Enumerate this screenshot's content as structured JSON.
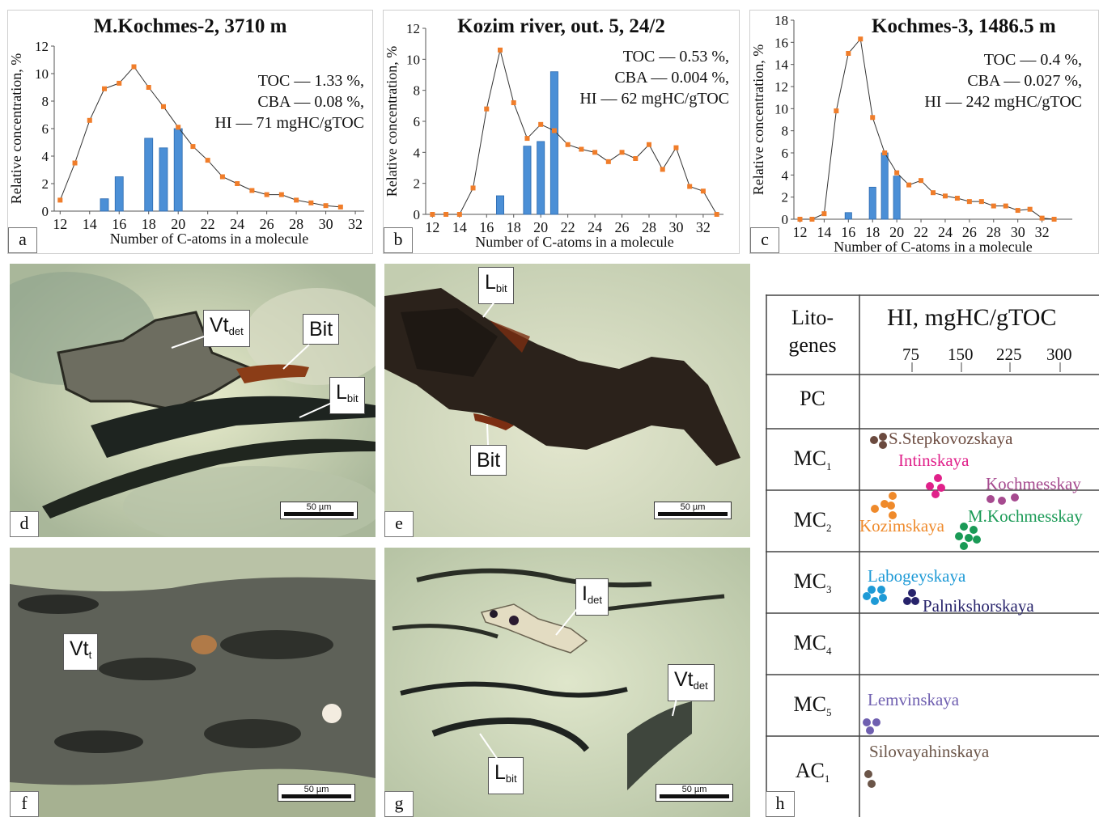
{
  "colors": {
    "line_marker": "#f07d2a",
    "bar": "#4b8fd6",
    "bar_edge": "#2d6bb0",
    "line": "#333333"
  },
  "charts": [
    {
      "letter": "a",
      "title": "M.Kochmes-2, 3710 m",
      "stats": [
        "TOC — 1.33 %,",
        "CBA — 0.08 %,",
        "HI — 71 mgHC/gTOC"
      ],
      "xlabel": "Number of C-atoms in a molecule",
      "ylabel": "Relative concentration, %"
    },
    {
      "letter": "b",
      "title": "Kozim river, out. 5, 24/2",
      "stats": [
        "TOC — 0.53 %,",
        "CBA — 0.004 %,",
        "HI — 62 mgHC/gTOC"
      ],
      "xlabel": "Number of C-atoms in a molecule",
      "ylabel": "Relative concentration, %"
    },
    {
      "letter": "c",
      "title": "Kochmes-3, 1486.5 m",
      "stats": [
        "TOC — 0.4 %,",
        "CBA — 0.027 %,",
        "HI — 242 mgHC/gTOC"
      ],
      "xlabel": "Number of C-atoms in a molecule",
      "ylabel": "Relative concentration, %"
    }
  ],
  "chart_data": [
    {
      "type": "bar",
      "title": "M.Kochmes-2, 3710 m",
      "xlabel": "Number of C-atoms in a molecule",
      "ylabel": "Relative concentration, %",
      "xlim": [
        11.6,
        32.6
      ],
      "ylim": [
        0,
        12
      ],
      "xticks": [
        12,
        14,
        16,
        18,
        20,
        22,
        24,
        26,
        28,
        30,
        32
      ],
      "yticks": [
        0,
        2,
        4,
        6,
        8,
        10,
        12
      ],
      "line": {
        "x": [
          12,
          13,
          14,
          15,
          16,
          17,
          18,
          19,
          20,
          21,
          22,
          23,
          24,
          25,
          26,
          27,
          28,
          29,
          30,
          31
        ],
        "y": [
          0.8,
          3.5,
          6.6,
          8.9,
          9.3,
          10.5,
          9.0,
          7.6,
          6.1,
          4.7,
          3.7,
          2.5,
          2.0,
          1.5,
          1.2,
          1.2,
          0.8,
          0.6,
          0.4,
          0.3
        ]
      },
      "bars": {
        "x": [
          15,
          16,
          18,
          19,
          20
        ],
        "y": [
          0.9,
          2.5,
          5.3,
          4.6,
          6.0
        ]
      }
    },
    {
      "type": "bar",
      "title": "Kozim river, out. 5, 24/2",
      "xlabel": "Number of C-atoms in a molecule",
      "ylabel": "Relative concentration, %",
      "xlim": [
        11.5,
        33.5
      ],
      "ylim": [
        0,
        12
      ],
      "xticks": [
        12,
        14,
        16,
        18,
        20,
        22,
        24,
        26,
        28,
        30,
        32
      ],
      "yticks": [
        0,
        2,
        4,
        6,
        8,
        10,
        12
      ],
      "line": {
        "x": [
          12,
          13,
          14,
          15,
          16,
          17,
          18,
          19,
          20,
          21,
          22,
          23,
          24,
          25,
          26,
          27,
          28,
          29,
          30,
          31,
          32,
          33
        ],
        "y": [
          0.0,
          0.0,
          0.0,
          1.7,
          6.8,
          10.6,
          7.2,
          4.9,
          5.8,
          5.4,
          4.5,
          4.2,
          4.0,
          3.4,
          4.0,
          3.6,
          4.5,
          2.9,
          4.3,
          1.8,
          1.5,
          0.0
        ]
      },
      "bars": {
        "x": [
          17,
          19,
          20,
          21
        ],
        "y": [
          1.2,
          4.4,
          4.7,
          9.2
        ]
      }
    },
    {
      "type": "bar",
      "title": "Kochmes-3, 1486.5 m",
      "xlabel": "Number of C-atoms in a molecule",
      "ylabel": "Relative concentration, %",
      "xlim": [
        11.5,
        34.5
      ],
      "ylim": [
        0,
        18
      ],
      "xticks": [
        12,
        14,
        16,
        18,
        20,
        22,
        24,
        26,
        28,
        30,
        32
      ],
      "yticks": [
        0,
        2,
        4,
        6,
        8,
        10,
        12,
        14,
        16,
        18
      ],
      "line": {
        "x": [
          12,
          13,
          14,
          15,
          16,
          17,
          18,
          19,
          20,
          21,
          22,
          23,
          24,
          25,
          26,
          27,
          28,
          29,
          30,
          31,
          32,
          33
        ],
        "y": [
          0.0,
          0.0,
          0.5,
          9.8,
          15.0,
          16.3,
          9.2,
          6.0,
          4.2,
          3.1,
          3.5,
          2.4,
          2.1,
          1.9,
          1.6,
          1.6,
          1.2,
          1.2,
          0.8,
          0.9,
          0.1,
          0.0
        ]
      },
      "bars": {
        "x": [
          16,
          18,
          19,
          20
        ],
        "y": [
          0.6,
          2.9,
          6.0,
          3.9
        ]
      }
    }
  ],
  "photos": {
    "d": {
      "letter": "d",
      "scale": "50 µm",
      "labels": [
        {
          "main": "Vt",
          "sub": "det"
        },
        {
          "main": "Bit",
          "sub": ""
        },
        {
          "main": "L",
          "sub": "bit"
        }
      ]
    },
    "e": {
      "letter": "e",
      "scale": "50 µm",
      "labels": [
        {
          "main": "L",
          "sub": "bit"
        },
        {
          "main": "Bit",
          "sub": ""
        }
      ]
    },
    "f": {
      "letter": "f",
      "scale": "50 µm",
      "labels": [
        {
          "main": "Vt",
          "sub": "t"
        }
      ]
    },
    "g": {
      "letter": "g",
      "scale": "50 µm",
      "labels": [
        {
          "main": "I",
          "sub": "det"
        },
        {
          "main": "Vt",
          "sub": "det"
        },
        {
          "main": "L",
          "sub": "bit"
        }
      ]
    }
  },
  "table": {
    "letter": "h",
    "col1_header": [
      "Lito-",
      "genes"
    ],
    "col2_header": "HI, mgHC/gTOC",
    "ticks": [
      "75",
      "150",
      "225",
      "300"
    ],
    "rows": [
      {
        "main": "PC",
        "sub": ""
      },
      {
        "main": "MC",
        "sub": "1"
      },
      {
        "main": "MC",
        "sub": "2"
      },
      {
        "main": "MC",
        "sub": "3"
      },
      {
        "main": "MC",
        "sub": "4"
      },
      {
        "main": "MC",
        "sub": "5"
      },
      {
        "main": "AC",
        "sub": "1"
      }
    ],
    "formations": [
      {
        "name": "S.Stepkovozskaya",
        "color": "#6b4a3f"
      },
      {
        "name": "Intinskaya",
        "color": "#e0218a"
      },
      {
        "name": "Kochmesskay",
        "color": "#a64a8f"
      },
      {
        "name": "Kozimskaya",
        "color": "#ef8a2b"
      },
      {
        "name": "M.Kochmesskay",
        "color": "#1a9a56"
      },
      {
        "name": "Labogeyskaya",
        "color": "#1e9ad6"
      },
      {
        "name": "Palnikshorskaya",
        "color": "#27236b"
      },
      {
        "name": "Lemvinskaya",
        "color": "#6f5fb0"
      },
      {
        "name": "Silovayahinskaya",
        "color": "#6b5548"
      }
    ]
  }
}
